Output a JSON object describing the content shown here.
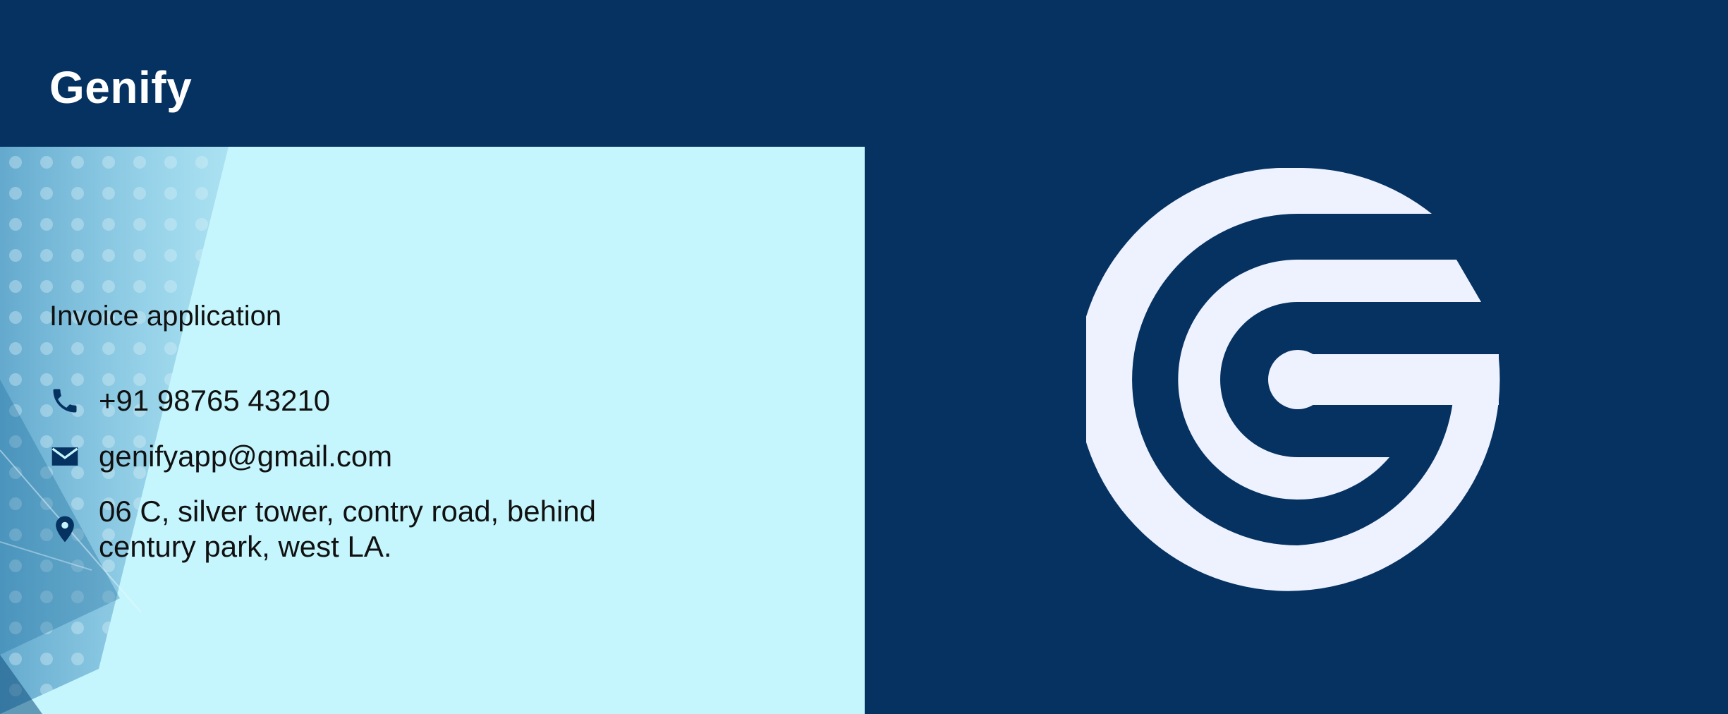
{
  "header": {
    "brand": "Genify"
  },
  "info": {
    "tagline": "Invoice application",
    "phone": "+91 98765 43210",
    "email": "genifyapp@gmail.com",
    "address": "06 C, silver tower, contry road, behind century park, west LA."
  },
  "icons": {
    "phone": "phone-icon",
    "email": "envelope-icon",
    "address": "map-pin-icon",
    "logo": "genify-g-logo"
  },
  "colors": {
    "navy": "#063261",
    "panel": "#c6f6fd",
    "logo": "#eef2ff",
    "text": "#111111",
    "brand_text": "#ffffff"
  }
}
